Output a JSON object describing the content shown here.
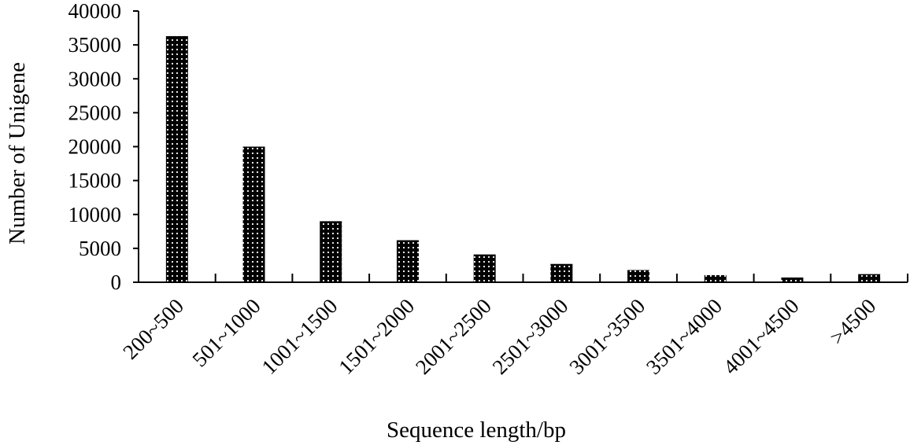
{
  "chart_data": {
    "type": "bar",
    "title": "",
    "xlabel": "Sequence length/bp",
    "ylabel": "Number of Unigene",
    "categories": [
      "200~500",
      "501~1000",
      "1001~1500",
      "1501~2000",
      "2001~2500",
      "2501~3000",
      "3001~3500",
      "3501~4000",
      "4001~4500",
      ">4500"
    ],
    "values": [
      36300,
      20000,
      9000,
      6200,
      4100,
      2700,
      1800,
      1050,
      700,
      1200
    ],
    "ylim": [
      0,
      40000
    ],
    "yticks": [
      "0",
      "5000",
      "10000",
      "15000",
      "20000",
      "25000",
      "30000",
      "35000",
      "40000"
    ],
    "grid": false,
    "legend": "none",
    "colors": {
      "bar_fill": "#000000",
      "bar_dots": "#ffffff",
      "axis": "#000000"
    }
  }
}
